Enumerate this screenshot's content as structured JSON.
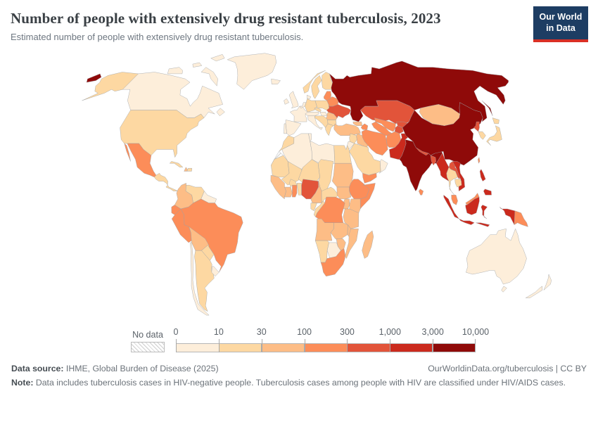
{
  "header": {
    "title": "Number of people with extensively drug resistant tuberculosis, 2023",
    "subtitle": "Estimated number of people with extensively drug resistant tuberculosis."
  },
  "logo": {
    "line1": "Our World",
    "line2": "in Data",
    "bg": "#1d3d63",
    "accent": "#d93025"
  },
  "legend": {
    "no_data_label": "No data",
    "tick_labels": [
      "0",
      "10",
      "30",
      "100",
      "300",
      "1,000",
      "3,000",
      "10,000"
    ]
  },
  "footer": {
    "source_label": "Data source:",
    "source_text": " IHME, Global Burden of Disease (2025)",
    "attribution": "OurWorldinData.org/tuberculosis | CC BY",
    "note_label": "Note:",
    "note_text": " Data includes tuberculosis cases in HIV-negative people. Tuberculosis cases among people with HIV are classified under HIV/AIDS cases."
  },
  "chart_data": {
    "type": "choropleth_map",
    "title": "Number of people with extensively drug resistant tuberculosis",
    "year": 2023,
    "unit": "people",
    "projection": "Robinson",
    "legend_position": "bottom",
    "bins": [
      {
        "range": "0–10",
        "color": "#fdeeda"
      },
      {
        "range": "10–30",
        "color": "#fdd8a2"
      },
      {
        "range": "30–100",
        "color": "#fdbd86"
      },
      {
        "range": "100–300",
        "color": "#fc8d59"
      },
      {
        "range": "300–1,000",
        "color": "#e2543a"
      },
      {
        "range": "1,000–3,000",
        "color": "#cb2a1d"
      },
      {
        "range": "3,000–10,000",
        "color": "#8f0a09"
      }
    ],
    "countries": [
      {
        "id": "canada",
        "name": "Canada",
        "bin": 0
      },
      {
        "id": "greenland",
        "name": "Greenland",
        "bin": 0
      },
      {
        "id": "usa",
        "name": "United States",
        "bin": 1
      },
      {
        "id": "mexico",
        "name": "Mexico",
        "bin": 3
      },
      {
        "id": "guatemala",
        "name": "Guatemala",
        "bin": 1
      },
      {
        "id": "panama",
        "name": "Panama",
        "bin": 1
      },
      {
        "id": "cuba",
        "name": "Cuba",
        "bin": 1
      },
      {
        "id": "haiti",
        "name": "Haiti",
        "bin": 2
      },
      {
        "id": "dominican_republic",
        "name": "Dominican Republic",
        "bin": 1
      },
      {
        "id": "colombia",
        "name": "Colombia",
        "bin": 2
      },
      {
        "id": "venezuela",
        "name": "Venezuela",
        "bin": 1
      },
      {
        "id": "guianas",
        "name": "Guyana",
        "bin": 0
      },
      {
        "id": "ecuador",
        "name": "Ecuador",
        "bin": 3
      },
      {
        "id": "peru",
        "name": "Peru",
        "bin": 3
      },
      {
        "id": "brazil",
        "name": "Brazil",
        "bin": 3
      },
      {
        "id": "bolivia",
        "name": "Bolivia",
        "bin": 2
      },
      {
        "id": "paraguay",
        "name": "Paraguay",
        "bin": 1
      },
      {
        "id": "chile",
        "name": "Chile",
        "bin": 0
      },
      {
        "id": "argentina",
        "name": "Argentina",
        "bin": 1
      },
      {
        "id": "uruguay",
        "name": "Uruguay",
        "bin": 0
      },
      {
        "id": "iceland",
        "name": "Iceland",
        "bin": 0
      },
      {
        "id": "norway",
        "name": "Norway",
        "bin": 1
      },
      {
        "id": "sweden",
        "name": "Sweden",
        "bin": 1
      },
      {
        "id": "finland",
        "name": "Finland",
        "bin": 1
      },
      {
        "id": "uk",
        "name": "United Kingdom",
        "bin": 0
      },
      {
        "id": "ireland",
        "name": "Ireland",
        "bin": 0
      },
      {
        "id": "france",
        "name": "France",
        "bin": 0
      },
      {
        "id": "spain",
        "name": "Spain",
        "bin": 0
      },
      {
        "id": "portugal",
        "name": "Portugal",
        "bin": 0
      },
      {
        "id": "benelux",
        "name": "Netherlands",
        "bin": 0
      },
      {
        "id": "germany",
        "name": "Germany",
        "bin": 1
      },
      {
        "id": "denmark",
        "name": "Denmark",
        "bin": 0
      },
      {
        "id": "poland",
        "name": "Poland",
        "bin": 1
      },
      {
        "id": "czechia",
        "name": "Czechia",
        "bin": 1
      },
      {
        "id": "alpine",
        "name": "Austria",
        "bin": 0
      },
      {
        "id": "hungary",
        "name": "Hungary",
        "bin": 0
      },
      {
        "id": "italy",
        "name": "Italy",
        "bin": 0
      },
      {
        "id": "balkans",
        "name": "Serbia",
        "bin": 1
      },
      {
        "id": "greece",
        "name": "Greece",
        "bin": 1
      },
      {
        "id": "bulgaria",
        "name": "Bulgaria",
        "bin": 1
      },
      {
        "id": "romania",
        "name": "Romania",
        "bin": 2
      },
      {
        "id": "moldova",
        "name": "Moldova",
        "bin": 5
      },
      {
        "id": "baltics",
        "name": "Baltic states",
        "bin": 3
      },
      {
        "id": "belarus",
        "name": "Belarus",
        "bin": 3
      },
      {
        "id": "ukraine",
        "name": "Ukraine",
        "bin": 4
      },
      {
        "id": "russia",
        "name": "Russia",
        "bin": 6
      },
      {
        "id": "turkey",
        "name": "Turkey",
        "bin": 2
      },
      {
        "id": "georgia",
        "name": "Georgia",
        "bin": 2
      },
      {
        "id": "azerbaijan",
        "name": "Azerbaijan",
        "bin": 3
      },
      {
        "id": "syria",
        "name": "Syria",
        "bin": 1
      },
      {
        "id": "iraq",
        "name": "Iraq",
        "bin": 2
      },
      {
        "id": "iran",
        "name": "Iran",
        "bin": 3
      },
      {
        "id": "jordan_israel",
        "name": "Jordan",
        "bin": 0
      },
      {
        "id": "saudi_arabia",
        "name": "Saudi Arabia",
        "bin": 1
      },
      {
        "id": "yemen",
        "name": "Yemen",
        "bin": 3
      },
      {
        "id": "oman",
        "name": "Oman",
        "bin": 0
      },
      {
        "id": "egypt",
        "name": "Egypt",
        "bin": 1
      },
      {
        "id": "morocco",
        "name": "Morocco",
        "bin": 1
      },
      {
        "id": "western_sahara",
        "name": "Western Sahara",
        "bin": "nodata"
      },
      {
        "id": "algeria",
        "name": "Algeria",
        "bin": 0
      },
      {
        "id": "tunisia",
        "name": "Tunisia",
        "bin": 0
      },
      {
        "id": "libya",
        "name": "Libya",
        "bin": 0
      },
      {
        "id": "mauritania",
        "name": "Mauritania",
        "bin": 1
      },
      {
        "id": "mali",
        "name": "Mali",
        "bin": 1
      },
      {
        "id": "senegal_guinea",
        "name": "Senegal/Guinea",
        "bin": 2
      },
      {
        "id": "ivory_coast",
        "name": "Cote d'Ivoire",
        "bin": 2
      },
      {
        "id": "ghana",
        "name": "Ghana",
        "bin": 3
      },
      {
        "id": "burkina_faso",
        "name": "Burkina Faso",
        "bin": 1
      },
      {
        "id": "togo_benin",
        "name": "Benin/Togo",
        "bin": 1
      },
      {
        "id": "niger",
        "name": "Niger",
        "bin": 1
      },
      {
        "id": "chad",
        "name": "Chad",
        "bin": 1
      },
      {
        "id": "nigeria",
        "name": "Nigeria",
        "bin": 4
      },
      {
        "id": "cameroon",
        "name": "Cameroon",
        "bin": 2
      },
      {
        "id": "central_african_republic",
        "name": "Central African Republic",
        "bin": 1
      },
      {
        "id": "sudan",
        "name": "Sudan",
        "bin": 2
      },
      {
        "id": "south_sudan",
        "name": "South Sudan",
        "bin": 2
      },
      {
        "id": "ethiopia",
        "name": "Ethiopia",
        "bin": 3
      },
      {
        "id": "somalia",
        "name": "Somalia",
        "bin": 3
      },
      {
        "id": "kenya",
        "name": "Kenya",
        "bin": 2
      },
      {
        "id": "uganda",
        "name": "Uganda",
        "bin": 2
      },
      {
        "id": "drc",
        "name": "Democratic Republic of Congo",
        "bin": 3
      },
      {
        "id": "congo",
        "name": "Congo",
        "bin": 1
      },
      {
        "id": "gabon",
        "name": "Gabon",
        "bin": 1
      },
      {
        "id": "angola",
        "name": "Angola",
        "bin": 2
      },
      {
        "id": "zambia",
        "name": "Zambia",
        "bin": 2
      },
      {
        "id": "tanzania",
        "name": "Tanzania",
        "bin": 2
      },
      {
        "id": "malawi",
        "name": "Malawi",
        "bin": 2
      },
      {
        "id": "mozambique",
        "name": "Mozambique",
        "bin": 2
      },
      {
        "id": "zimbabwe",
        "name": "Zimbabwe",
        "bin": 2
      },
      {
        "id": "botswana",
        "name": "Botswana",
        "bin": 0
      },
      {
        "id": "namibia",
        "name": "Namibia",
        "bin": 1
      },
      {
        "id": "south_africa",
        "name": "South Africa",
        "bin": 3
      },
      {
        "id": "madagascar",
        "name": "Madagascar",
        "bin": 2
      },
      {
        "id": "kazakhstan",
        "name": "Kazakhstan",
        "bin": 4
      },
      {
        "id": "uzbekistan",
        "name": "Uzbekistan",
        "bin": 3
      },
      {
        "id": "turkmenistan",
        "name": "Turkmenistan",
        "bin": 3
      },
      {
        "id": "kyrgyzstan",
        "name": "Kyrgyzstan",
        "bin": 4
      },
      {
        "id": "tajikistan",
        "name": "Tajikistan",
        "bin": 4
      },
      {
        "id": "afghanistan",
        "name": "Afghanistan",
        "bin": 3
      },
      {
        "id": "pakistan",
        "name": "Pakistan",
        "bin": 5
      },
      {
        "id": "india",
        "name": "India",
        "bin": 6
      },
      {
        "id": "nepal",
        "name": "Nepal",
        "bin": 4
      },
      {
        "id": "bangladesh",
        "name": "Bangladesh",
        "bin": 4
      },
      {
        "id": "sri_lanka",
        "name": "Sri Lanka",
        "bin": 3
      },
      {
        "id": "china",
        "name": "China",
        "bin": 6
      },
      {
        "id": "mongolia",
        "name": "Mongolia",
        "bin": 2
      },
      {
        "id": "north_korea",
        "name": "North Korea",
        "bin": 4
      },
      {
        "id": "south_korea",
        "name": "South Korea",
        "bin": 1
      },
      {
        "id": "japan",
        "name": "Japan",
        "bin": 1
      },
      {
        "id": "taiwan",
        "name": "Taiwan",
        "bin": 3
      },
      {
        "id": "myanmar",
        "name": "Myanmar",
        "bin": 5
      },
      {
        "id": "thailand",
        "name": "Thailand",
        "bin": 1
      },
      {
        "id": "laos",
        "name": "Laos",
        "bin": 4
      },
      {
        "id": "vietnam",
        "name": "Vietnam",
        "bin": 5
      },
      {
        "id": "cambodia",
        "name": "Cambodia",
        "bin": 1
      },
      {
        "id": "malaysia",
        "name": "Malaysia",
        "bin": 3
      },
      {
        "id": "indonesia",
        "name": "Indonesia",
        "bin": 5
      },
      {
        "id": "philippines",
        "name": "Philippines",
        "bin": 5
      },
      {
        "id": "papua_new_guinea",
        "name": "Papua New Guinea",
        "bin": 3
      },
      {
        "id": "australia",
        "name": "Australia",
        "bin": 0
      },
      {
        "id": "new_zealand",
        "name": "New Zealand",
        "bin": 0
      }
    ]
  }
}
